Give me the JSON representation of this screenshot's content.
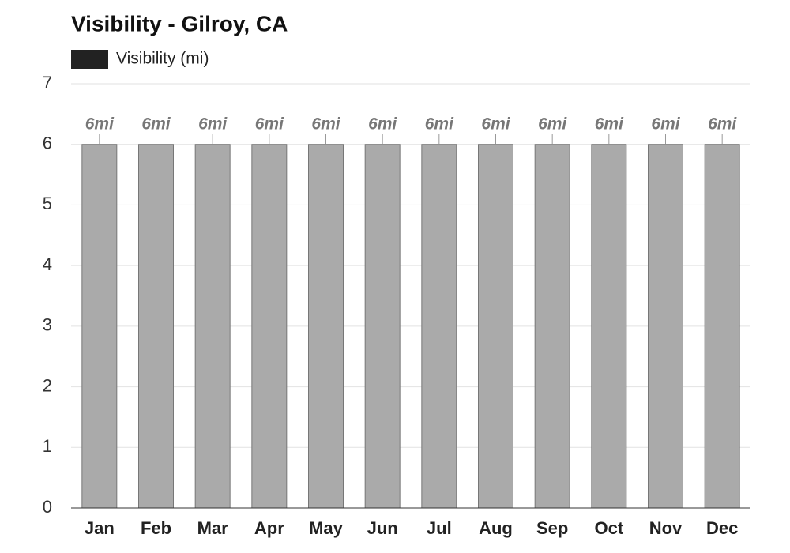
{
  "chart_data": {
    "type": "bar",
    "title": "Visibility - Gilroy, CA",
    "categories": [
      "Jan",
      "Feb",
      "Mar",
      "Apr",
      "May",
      "Jun",
      "Jul",
      "Aug",
      "Sep",
      "Oct",
      "Nov",
      "Dec"
    ],
    "series": [
      {
        "name": "Visibility (mi)",
        "color": "#aaaaaa",
        "legend_color": "#222222",
        "values": [
          6,
          6,
          6,
          6,
          6,
          6,
          6,
          6,
          6,
          6,
          6,
          6
        ],
        "value_labels": [
          "6mi",
          "6mi",
          "6mi",
          "6mi",
          "6mi",
          "6mi",
          "6mi",
          "6mi",
          "6mi",
          "6mi",
          "6mi",
          "6mi"
        ]
      }
    ],
    "ylim": [
      0,
      7
    ],
    "yticks": [
      0,
      1,
      2,
      3,
      4,
      5,
      6,
      7
    ],
    "grid": true
  }
}
